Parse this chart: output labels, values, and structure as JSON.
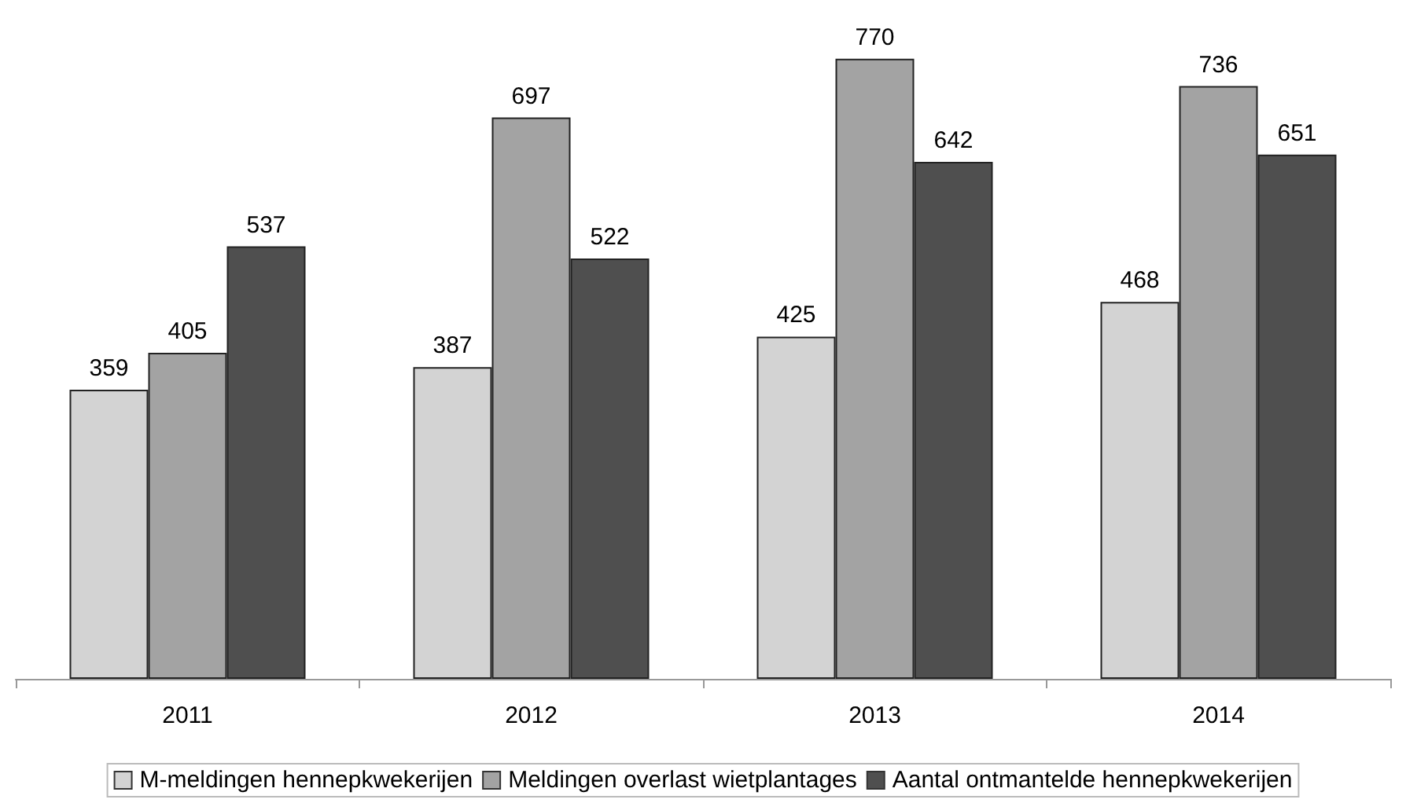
{
  "chart_data": {
    "type": "bar",
    "categories": [
      "2011",
      "2012",
      "2013",
      "2014"
    ],
    "series": [
      {
        "name": "M-meldingen hennepkwekerijen",
        "color": "#d3d3d3",
        "values": [
          359,
          387,
          425,
          468
        ]
      },
      {
        "name": "Meldingen overlast wietplantages",
        "color": "#a3a3a3",
        "values": [
          405,
          697,
          770,
          736
        ]
      },
      {
        "name": "Aantal ontmantelde hennepkwekerijen",
        "color": "#4f4f4f",
        "values": [
          537,
          522,
          642,
          651
        ]
      }
    ],
    "data_labels": true,
    "grid": false,
    "legend": "bottom"
  }
}
